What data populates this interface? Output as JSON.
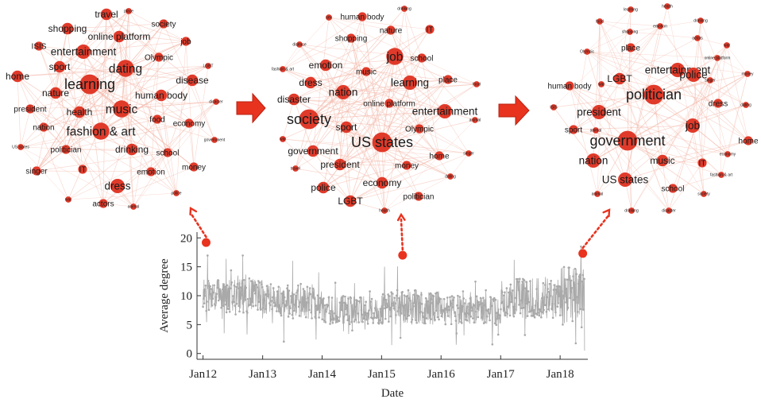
{
  "networks": [
    {
      "nodes": [
        {
          "label": "travel",
          "size": 3
        },
        {
          "label": "place",
          "size": 1
        },
        {
          "label": "society",
          "size": 2
        },
        {
          "label": "shopping",
          "size": 3
        },
        {
          "label": "ISIS",
          "size": 2
        },
        {
          "label": "online platform",
          "size": 3
        },
        {
          "label": "job",
          "size": 2
        },
        {
          "label": "entertainment",
          "size": 4
        },
        {
          "label": "Olympic",
          "size": 2
        },
        {
          "label": "sport",
          "size": 3
        },
        {
          "label": "dating",
          "size": 5
        },
        {
          "label": "LGBT",
          "size": 1
        },
        {
          "label": "home",
          "size": 3
        },
        {
          "label": "learning",
          "size": 6
        },
        {
          "label": "disease",
          "size": 3
        },
        {
          "label": "nature",
          "size": 3
        },
        {
          "label": "human body",
          "size": 3
        },
        {
          "label": "president",
          "size": 2
        },
        {
          "label": "health",
          "size": 3
        },
        {
          "label": "music",
          "size": 5
        },
        {
          "label": "disaster",
          "size": 1
        },
        {
          "label": "food",
          "size": 2
        },
        {
          "label": "nation",
          "size": 2
        },
        {
          "label": "fashion & art",
          "size": 5
        },
        {
          "label": "economy",
          "size": 2
        },
        {
          "label": "US states",
          "size": 1
        },
        {
          "label": "politician",
          "size": 2
        },
        {
          "label": "drinking",
          "size": 3
        },
        {
          "label": "school",
          "size": 2
        },
        {
          "label": "government",
          "size": 1
        },
        {
          "label": "singer",
          "size": 2
        },
        {
          "label": "IT",
          "size": 2
        },
        {
          "label": "emotion",
          "size": 2
        },
        {
          "label": "money",
          "size": 2
        },
        {
          "label": "dress",
          "size": 4
        },
        {
          "label": "police",
          "size": 1
        },
        {
          "label": "war",
          "size": 1
        },
        {
          "label": "actors",
          "size": 2
        },
        {
          "label": "animal",
          "size": 1
        }
      ]
    },
    {
      "nodes": [
        {
          "label": "drinking",
          "size": 1
        },
        {
          "label": "human body",
          "size": 2
        },
        {
          "label": "sex",
          "size": 1
        },
        {
          "label": "nature",
          "size": 2
        },
        {
          "label": "IT",
          "size": 2
        },
        {
          "label": "shopping",
          "size": 2
        },
        {
          "label": "disease",
          "size": 1
        },
        {
          "label": "job",
          "size": 5
        },
        {
          "label": "school",
          "size": 2
        },
        {
          "label": "emotion",
          "size": 3
        },
        {
          "label": "fashion & art",
          "size": 1
        },
        {
          "label": "music",
          "size": 2
        },
        {
          "label": "dress",
          "size": 3
        },
        {
          "label": "learning",
          "size": 4
        },
        {
          "label": "place",
          "size": 2
        },
        {
          "label": "nation",
          "size": 4
        },
        {
          "label": "food",
          "size": 1
        },
        {
          "label": "disaster",
          "size": 3
        },
        {
          "label": "online platform",
          "size": 2
        },
        {
          "label": "entertainment",
          "size": 4
        },
        {
          "label": "society",
          "size": 6
        },
        {
          "label": "sport",
          "size": 3
        },
        {
          "label": "animal",
          "size": 1
        },
        {
          "label": "US states",
          "size": 6
        },
        {
          "label": "Olympic",
          "size": 2
        },
        {
          "label": "war",
          "size": 1
        },
        {
          "label": "home",
          "size": 2
        },
        {
          "label": "government",
          "size": 3
        },
        {
          "label": "singer",
          "size": 1
        },
        {
          "label": "travel",
          "size": 1
        },
        {
          "label": "president",
          "size": 3
        },
        {
          "label": "money",
          "size": 2
        },
        {
          "label": "dating",
          "size": 1
        },
        {
          "label": "police",
          "size": 3
        },
        {
          "label": "economy",
          "size": 3
        },
        {
          "label": "politician",
          "size": 2
        },
        {
          "label": "LGBT",
          "size": 3
        },
        {
          "label": "health",
          "size": 1
        }
      ]
    },
    {
      "nodes": [
        {
          "label": "food",
          "size": 1
        },
        {
          "label": "learning",
          "size": 1
        },
        {
          "label": "health",
          "size": 1
        },
        {
          "label": "drinking",
          "size": 1
        },
        {
          "label": "emotion",
          "size": 1
        },
        {
          "label": "shopping",
          "size": 1
        },
        {
          "label": "place",
          "size": 2
        },
        {
          "label": "actors",
          "size": 1
        },
        {
          "label": "war",
          "size": 1
        },
        {
          "label": "Olympic",
          "size": 1
        },
        {
          "label": "online platform",
          "size": 1
        },
        {
          "label": "entertainment",
          "size": 4
        },
        {
          "label": "police",
          "size": 4
        },
        {
          "label": "money",
          "size": 1
        },
        {
          "label": "LGBT",
          "size": 3
        },
        {
          "label": "singer",
          "size": 1
        },
        {
          "label": "war",
          "size": 1
        },
        {
          "label": "human body",
          "size": 2
        },
        {
          "label": "politician",
          "size": 6
        },
        {
          "label": "dress",
          "size": 2
        },
        {
          "label": "dating",
          "size": 1
        },
        {
          "label": "ISIS",
          "size": 1
        },
        {
          "label": "president",
          "size": 4
        },
        {
          "label": "job",
          "size": 4
        },
        {
          "label": "sport",
          "size": 2
        },
        {
          "label": "animal",
          "size": 1
        },
        {
          "label": "government",
          "size": 6
        },
        {
          "label": "home",
          "size": 2
        },
        {
          "label": "economy",
          "size": 1
        },
        {
          "label": "nation",
          "size": 4
        },
        {
          "label": "music",
          "size": 3
        },
        {
          "label": "IT",
          "size": 2
        },
        {
          "label": "fashion & art",
          "size": 1
        },
        {
          "label": "US states",
          "size": 4
        },
        {
          "label": "school",
          "size": 2
        },
        {
          "label": "animal",
          "size": 1
        },
        {
          "label": "society",
          "size": 1
        },
        {
          "label": "drinking",
          "size": 1
        },
        {
          "label": "disaster",
          "size": 1
        }
      ]
    }
  ],
  "colors": {
    "node": "#e03a2a",
    "edge": "#f2b7a8",
    "series": "#a9a9a9",
    "highlight": "#e8331f",
    "arrow": "#e8331f",
    "axis": "#333333"
  },
  "chart_data": {
    "type": "line",
    "xlabel": "Date",
    "ylabel": "Average degree",
    "xticks": [
      "Jan12",
      "Jan13",
      "Jan14",
      "Jan15",
      "Jan16",
      "Jan17",
      "Jan18"
    ],
    "yticks": [
      0,
      5,
      10,
      15,
      20
    ],
    "ylim": [
      -1,
      21
    ],
    "xlim": [
      "2011-11-25",
      "2018-06-20"
    ],
    "grid": false,
    "series": [
      {
        "values_by_period": [
          {
            "period": "2012",
            "typical_range": [
              7,
              13
            ]
          },
          {
            "period": "2013",
            "typical_range": [
              6,
              12
            ]
          },
          {
            "period": "2014",
            "typical_range": [
              5,
              10
            ]
          },
          {
            "period": "2015",
            "typical_range": [
              5,
              11
            ]
          },
          {
            "period": "2016",
            "typical_range": [
              5,
              10
            ]
          },
          {
            "period": "2017",
            "typical_range": [
              6,
              13
            ]
          },
          {
            "period": "2018",
            "typical_range": [
              5,
              15
            ]
          }
        ]
      }
    ],
    "highlighted_points": [
      {
        "date": "2012-01-20",
        "value": 19.2
      },
      {
        "date": "2015-05-10",
        "value": 17.0
      },
      {
        "date": "2018-05-20",
        "value": 17.3
      }
    ]
  }
}
